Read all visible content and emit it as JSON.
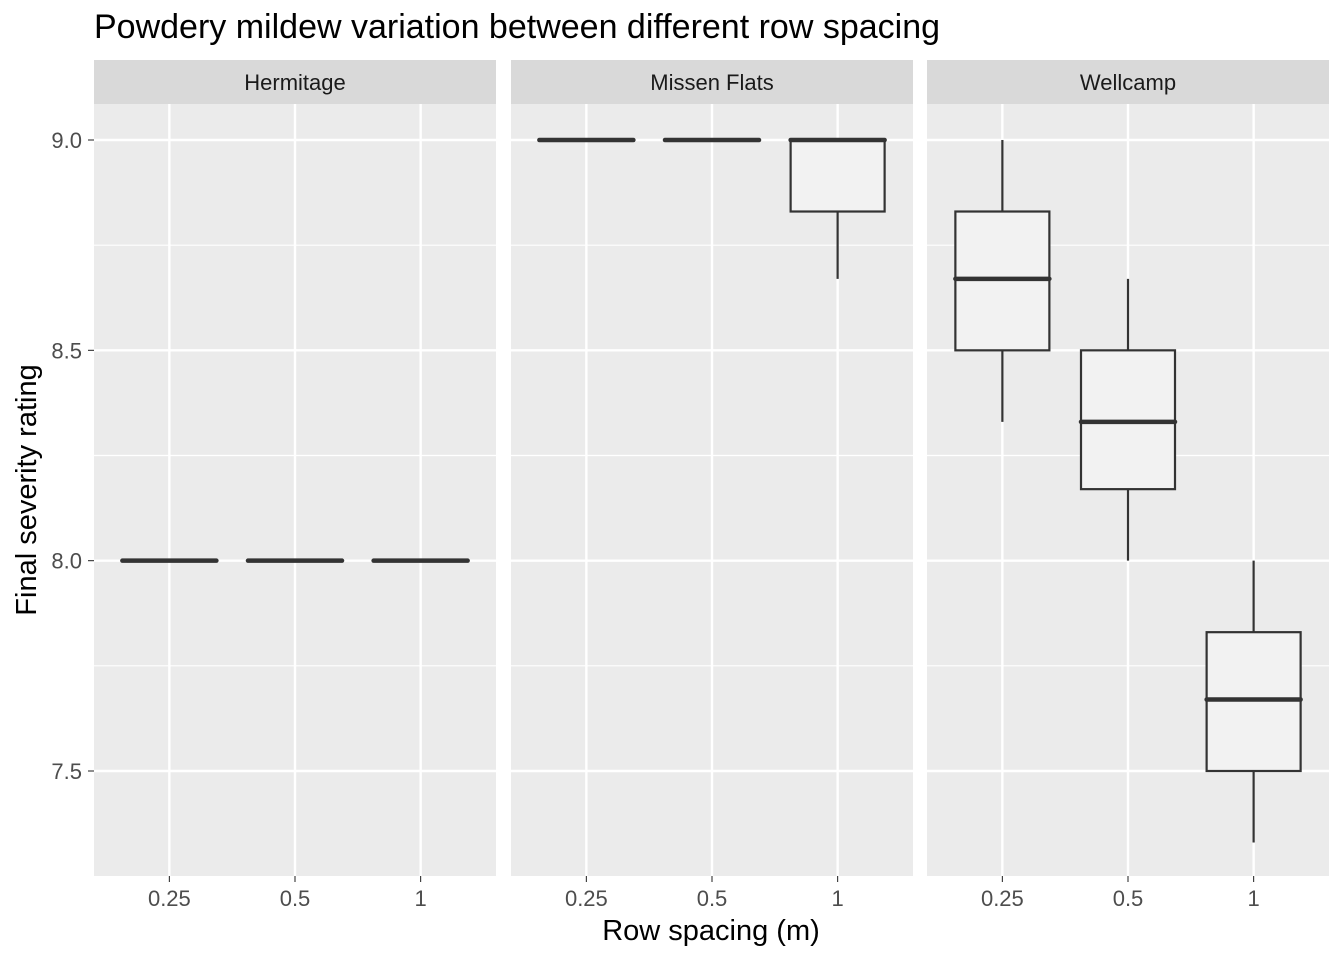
{
  "chart_data": {
    "type": "box",
    "title": "Powdery mildew variation between different row spacing",
    "xlabel": "Row spacing (m)",
    "ylabel": "Final severity rating",
    "categories": [
      "0.25",
      "0.5",
      "1"
    ],
    "ylim": [
      7.33,
      9.0
    ],
    "yticks": [
      7.5,
      8.0,
      8.5,
      9.0
    ],
    "ytick_labels": [
      "7.5",
      "8.0",
      "8.5",
      "9.0"
    ],
    "grid": true,
    "colors": {
      "panel_bg": "#ebebeb",
      "strip_bg": "#d9d9d9",
      "grid": "#ffffff",
      "box_fill": "#f2f2f2",
      "box_line": "#333333"
    },
    "facets": [
      {
        "name": "Hermitage",
        "boxes": [
          {
            "category": "0.25",
            "min": 8.0,
            "q1": 8.0,
            "median": 8.0,
            "q3": 8.0,
            "max": 8.0
          },
          {
            "category": "0.5",
            "min": 8.0,
            "q1": 8.0,
            "median": 8.0,
            "q3": 8.0,
            "max": 8.0
          },
          {
            "category": "1",
            "min": 8.0,
            "q1": 8.0,
            "median": 8.0,
            "q3": 8.0,
            "max": 8.0
          }
        ]
      },
      {
        "name": "Missen Flats",
        "boxes": [
          {
            "category": "0.25",
            "min": 9.0,
            "q1": 9.0,
            "median": 9.0,
            "q3": 9.0,
            "max": 9.0
          },
          {
            "category": "0.5",
            "min": 9.0,
            "q1": 9.0,
            "median": 9.0,
            "q3": 9.0,
            "max": 9.0
          },
          {
            "category": "1",
            "min": 8.67,
            "q1": 8.83,
            "median": 9.0,
            "q3": 9.0,
            "max": 9.0
          }
        ]
      },
      {
        "name": "Wellcamp",
        "boxes": [
          {
            "category": "0.25",
            "min": 8.33,
            "q1": 8.5,
            "median": 8.67,
            "q3": 8.83,
            "max": 9.0
          },
          {
            "category": "0.5",
            "min": 8.0,
            "q1": 8.17,
            "median": 8.33,
            "q3": 8.5,
            "max": 8.67
          },
          {
            "category": "1",
            "min": 7.33,
            "q1": 7.5,
            "median": 7.67,
            "q3": 7.83,
            "max": 8.0
          }
        ]
      }
    ]
  }
}
